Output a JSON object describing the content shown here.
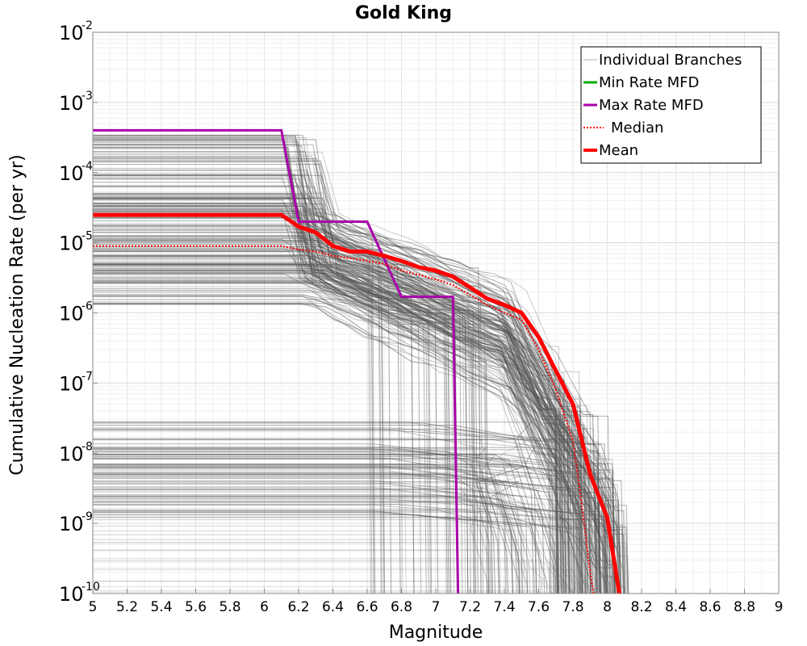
{
  "chart_data": {
    "type": "line",
    "title": "Gold King",
    "xlabel": "Magnitude",
    "ylabel": "Cumulative Nucleation Rate (per yr)",
    "xlim": [
      5,
      9
    ],
    "ylim": [
      1e-10,
      0.01
    ],
    "yscale": "log",
    "grid": true,
    "legend_position": "top-right",
    "x_ticks": [
      "5",
      "5.2",
      "5.4",
      "5.6",
      "5.8",
      "6",
      "6.2",
      "6.4",
      "6.6",
      "6.8",
      "7",
      "7.2",
      "7.4",
      "7.6",
      "7.8",
      "8",
      "8.2",
      "8.4",
      "8.6",
      "8.8",
      "9"
    ],
    "y_ticks": [
      {
        "base": "10",
        "exp": "-2",
        "value": 0.01
      },
      {
        "base": "10",
        "exp": "-3",
        "value": 0.001
      },
      {
        "base": "10",
        "exp": "-4",
        "value": 0.0001
      },
      {
        "base": "10",
        "exp": "-5",
        "value": 1e-05
      },
      {
        "base": "10",
        "exp": "-6",
        "value": 1e-06
      },
      {
        "base": "10",
        "exp": "-7",
        "value": 1e-07
      },
      {
        "base": "10",
        "exp": "-8",
        "value": 1e-08
      },
      {
        "base": "10",
        "exp": "-9",
        "value": 1e-09
      },
      {
        "base": "10",
        "exp": "-10",
        "value": 1e-10
      }
    ],
    "series": [
      {
        "name": "Individual Branches",
        "color": "#555555",
        "style": "thin-gray-ensemble",
        "x": [],
        "y": []
      },
      {
        "name": "Min Rate MFD",
        "color": "#00aa00",
        "style": "solid",
        "x": [],
        "y": []
      },
      {
        "name": "Max Rate MFD",
        "color": "#aa00aa",
        "style": "solid",
        "x": [
          5.0,
          6.1,
          6.2,
          6.6,
          6.8,
          7.1,
          7.13
        ],
        "y": [
          0.0004,
          0.0004,
          2e-05,
          2e-05,
          1.7e-06,
          1.7e-06,
          1e-10
        ]
      },
      {
        "name": "Median",
        "color": "#ff0000",
        "style": "dotted",
        "x": [
          5.0,
          6.1,
          6.2,
          6.3,
          6.4,
          6.5,
          6.6,
          6.7,
          6.8,
          6.9,
          7.0,
          7.1,
          7.2,
          7.3,
          7.4,
          7.5,
          7.6,
          7.7,
          7.8,
          7.85,
          7.9,
          7.92
        ],
        "y": [
          9e-06,
          9e-06,
          8e-06,
          7.5e-06,
          6.5e-06,
          6e-06,
          5.5e-06,
          5e-06,
          4e-06,
          3.5e-06,
          3e-06,
          2.5e-06,
          1.8e-06,
          1.3e-06,
          1e-06,
          8e-07,
          3e-07,
          8e-08,
          1.5e-08,
          2e-09,
          2e-10,
          1e-10
        ]
      },
      {
        "name": "Mean",
        "color": "#ff0000",
        "style": "solid-thick",
        "x": [
          5.0,
          6.1,
          6.2,
          6.3,
          6.4,
          6.5,
          6.6,
          6.7,
          6.8,
          6.9,
          7.0,
          7.1,
          7.2,
          7.3,
          7.4,
          7.5,
          7.6,
          7.7,
          7.8,
          7.9,
          8.0,
          8.07
        ],
        "y": [
          2.5e-05,
          2.5e-05,
          1.7e-05,
          1.4e-05,
          9e-06,
          7.5e-06,
          7.5e-06,
          6.5e-06,
          5.5e-06,
          4.5e-06,
          4e-06,
          3.3e-06,
          2.3e-06,
          1.6e-06,
          1.3e-06,
          1e-06,
          4.5e-07,
          1.5e-07,
          5e-08,
          5e-09,
          1.2e-09,
          1e-10
        ]
      }
    ]
  }
}
